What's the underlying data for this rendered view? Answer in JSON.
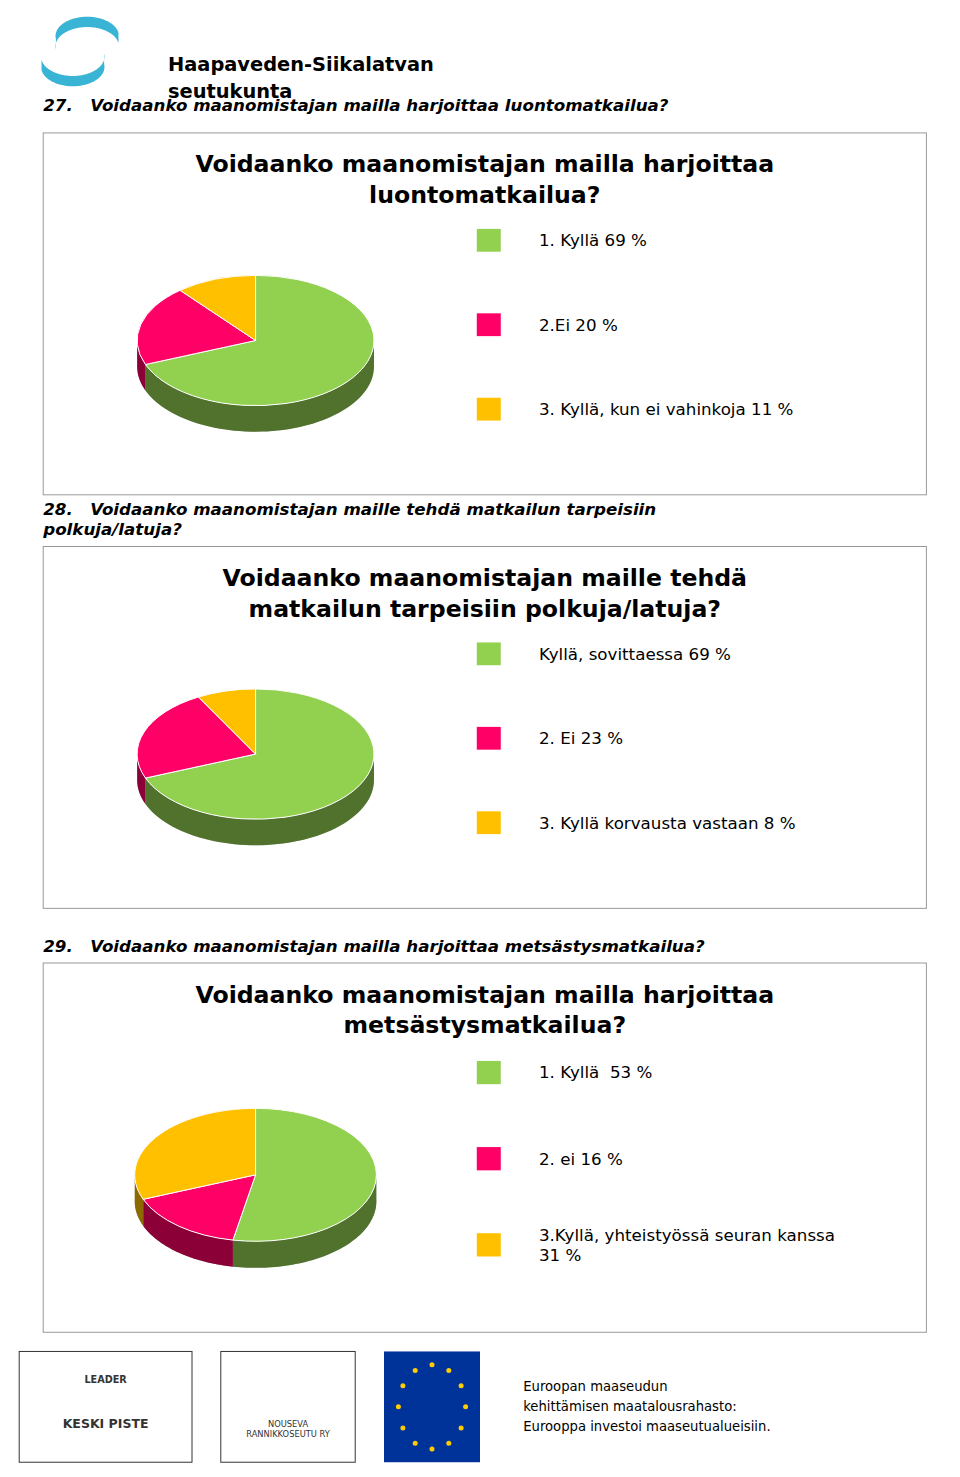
{
  "chart_data": [
    {
      "type": "pie",
      "subtitle": "27.   Voidaanko maanomistajan mailla harjoittaa luontomatkailua?",
      "title": "Voidaanko maanomistajan mailla harjoittaa\nluontomatkailua?",
      "categories": [
        "1. Kyllä 69 %",
        "2.Ei 20 %",
        "3. Kyllä, kun ei vahinkoja 11 %"
      ],
      "values": [
        69,
        20,
        11
      ],
      "colors": [
        "#92d050",
        "#ff0066",
        "#ffc000"
      ],
      "legend": "right"
    },
    {
      "type": "pie",
      "subtitle": "28.   Voidaanko maanomistajan maille tehdä matkailun tarpeisiin\npolkuja/latuja?",
      "title": "Voidaanko maanomistajan maille tehdä\nmatkailun tarpeisiin polkuja/latuja?",
      "categories": [
        "Kyllä, sovittaessa 69 %",
        "2. Ei 23 %",
        "3. Kyllä korvausta vastaan 8 %"
      ],
      "values": [
        69,
        23,
        8
      ],
      "colors": [
        "#92d050",
        "#ff0066",
        "#ffc000"
      ],
      "legend": "right"
    },
    {
      "type": "pie",
      "subtitle": "29.   Voidaanko maanomistajan mailla harjoittaa metsästysmatkailua?",
      "title": "Voidaanko maanomistajan mailla harjoittaa\nmetsästysmatkailua?",
      "categories": [
        "1. Kyllä  53 %",
        "2. ei 16 %",
        "3.Kyllä, yhteistyössä seuran kanssa\n31 %"
      ],
      "values": [
        53,
        16,
        31
      ],
      "colors": [
        "#92d050",
        "#ff0066",
        "#ffc000"
      ],
      "legend": "right"
    }
  ],
  "annotations": [
    "Haapaveden-Siikalatvan\nseutukunta",
    "Euroopan maaseudun\nkehittämisen maatalousrahasto:\nEurooppa investoi maaseutualueisiin.",
    "LEADER",
    "KESKI PISTE",
    "NOUSEVA\nRANNIKKOSEUTU RY"
  ]
}
